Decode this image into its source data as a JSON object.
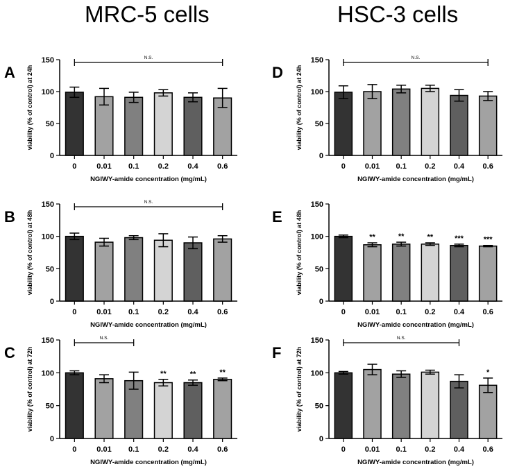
{
  "columns": [
    "MRC-5 cells",
    "HSC-3 cells"
  ],
  "chart_data": [
    {
      "panel": "A",
      "type": "bar",
      "column": 0,
      "row": 0,
      "categories": [
        "0",
        "0.01",
        "0.1",
        "0.2",
        "0.4",
        "0.6"
      ],
      "values": [
        99,
        92,
        91,
        98,
        91,
        90
      ],
      "errors": [
        8,
        13,
        8,
        5,
        7,
        15
      ],
      "bar_colors": [
        "#333333",
        "#a2a2a2",
        "#808080",
        "#d4d4d4",
        "#5f5f5f",
        "#a2a2a2"
      ],
      "ylabel": "viability (% of control) at 24h",
      "xlabel": "NGIWY-amide concentration (mg/mL)",
      "ylim": [
        0,
        150
      ],
      "yticks": [
        0,
        50,
        100,
        150
      ],
      "significance": [
        "",
        "",
        "",
        "",
        "",
        ""
      ],
      "bracket": {
        "from": 0,
        "to": 5,
        "label": "N.S."
      }
    },
    {
      "panel": "B",
      "type": "bar",
      "column": 0,
      "row": 1,
      "categories": [
        "0",
        "0.01",
        "0.1",
        "0.2",
        "0.4",
        "0.6"
      ],
      "values": [
        100,
        91,
        98,
        94,
        90,
        96
      ],
      "errors": [
        5,
        6,
        3,
        10,
        9,
        5
      ],
      "bar_colors": [
        "#333333",
        "#a2a2a2",
        "#808080",
        "#d4d4d4",
        "#5f5f5f",
        "#a2a2a2"
      ],
      "ylabel": "viability (% of control) at 48h",
      "xlabel": "NGIWY-amide concentration (mg/mL)",
      "ylim": [
        0,
        150
      ],
      "yticks": [
        0,
        50,
        100,
        150
      ],
      "significance": [
        "",
        "",
        "",
        "",
        "",
        ""
      ],
      "bracket": {
        "from": 0,
        "to": 5,
        "label": "N.S."
      }
    },
    {
      "panel": "C",
      "type": "bar",
      "column": 0,
      "row": 2,
      "categories": [
        "0",
        "0.01",
        "0.1",
        "0.2",
        "0.4",
        "0.6"
      ],
      "values": [
        100,
        91,
        88,
        85,
        85,
        90
      ],
      "errors": [
        3,
        6,
        13,
        5,
        4,
        2
      ],
      "bar_colors": [
        "#333333",
        "#a2a2a2",
        "#808080",
        "#d4d4d4",
        "#5f5f5f",
        "#a2a2a2"
      ],
      "ylabel": "viability (% of control) at 72h",
      "xlabel": "NGIWY-amide concentration (mg/mL)",
      "ylim": [
        0,
        150
      ],
      "yticks": [
        0,
        50,
        100,
        150
      ],
      "significance": [
        "",
        "",
        "",
        "**",
        "**",
        "**"
      ],
      "bracket": {
        "from": 0,
        "to": 2,
        "label": "N.S."
      }
    },
    {
      "panel": "D",
      "type": "bar",
      "column": 1,
      "row": 0,
      "categories": [
        "0",
        "0.01",
        "0.1",
        "0.2",
        "0.4",
        "0.6"
      ],
      "values": [
        99,
        100,
        104,
        105,
        94,
        93
      ],
      "errors": [
        10,
        11,
        6,
        5,
        9,
        7
      ],
      "bar_colors": [
        "#333333",
        "#a2a2a2",
        "#808080",
        "#d4d4d4",
        "#5f5f5f",
        "#a2a2a2"
      ],
      "ylabel": "viability (% of control) at 24h",
      "xlabel": "NGIWY-amide concentration (mg/mL)",
      "ylim": [
        0,
        150
      ],
      "yticks": [
        0,
        50,
        100,
        150
      ],
      "significance": [
        "",
        "",
        "",
        "",
        "",
        ""
      ],
      "bracket": {
        "from": 0,
        "to": 5,
        "label": "N.S."
      }
    },
    {
      "panel": "E",
      "type": "bar",
      "column": 1,
      "row": 1,
      "categories": [
        "0",
        "0.01",
        "0.1",
        "0.2",
        "0.4",
        "0.6"
      ],
      "values": [
        100,
        87,
        88,
        88,
        86,
        85
      ],
      "errors": [
        2,
        3,
        3,
        2,
        2,
        1
      ],
      "bar_colors": [
        "#333333",
        "#a2a2a2",
        "#808080",
        "#d4d4d4",
        "#5f5f5f",
        "#a2a2a2"
      ],
      "ylabel": "viability (% of control) at 48h",
      "xlabel": "NGIWY-amide concentration (mg/mL)",
      "ylim": [
        0,
        150
      ],
      "yticks": [
        0,
        50,
        100,
        150
      ],
      "significance": [
        "",
        "**",
        "**",
        "**",
        "***",
        "***"
      ],
      "bracket": null
    },
    {
      "panel": "F",
      "type": "bar",
      "column": 1,
      "row": 2,
      "categories": [
        "0",
        "0.01",
        "0.1",
        "0.2",
        "0.4",
        "0.6"
      ],
      "values": [
        100,
        105,
        98,
        101,
        87,
        81
      ],
      "errors": [
        2,
        8,
        5,
        3,
        10,
        11
      ],
      "bar_colors": [
        "#333333",
        "#a2a2a2",
        "#808080",
        "#d4d4d4",
        "#5f5f5f",
        "#a2a2a2"
      ],
      "ylabel": "viability (% of control) at 72h",
      "xlabel": "NGIWY-amide concentration (mg/mL)",
      "ylim": [
        0,
        150
      ],
      "yticks": [
        0,
        50,
        100,
        150
      ],
      "significance": [
        "",
        "",
        "",
        "",
        "",
        "*"
      ],
      "bracket": {
        "from": 0,
        "to": 4,
        "label": "N.S."
      }
    }
  ]
}
